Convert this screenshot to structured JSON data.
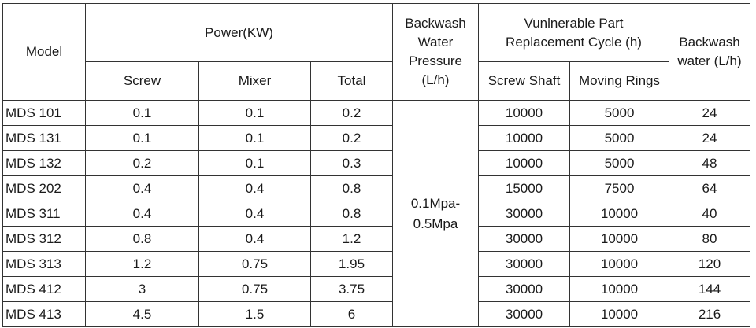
{
  "headers": {
    "model": "Model",
    "power": "Power(KW)",
    "screw": "Screw",
    "mixer": "Mixer",
    "total": "Total",
    "pressure_line1": "Backwash",
    "pressure_line2": "Water",
    "pressure_line3": "Pressure",
    "pressure_line4": "(L/h)",
    "cycle_line1": "Vunlnerable Part",
    "cycle_line2": "Replacement Cycle (h)",
    "screw_shaft": "Screw Shaft",
    "moving_rings": "Moving Rings",
    "water_line1": "Backwash",
    "water_line2": "water (L/h)"
  },
  "pressure_value_line1": "0.1Mpa-",
  "pressure_value_line2": "0.5Mpa",
  "rows": [
    {
      "model": "MDS 101",
      "screw": "0.1",
      "mixer": "0.1",
      "total": "0.2",
      "shaft": "10000",
      "rings": "5000",
      "water": "24"
    },
    {
      "model": "MDS 131",
      "screw": "0.1",
      "mixer": "0.1",
      "total": "0.2",
      "shaft": "10000",
      "rings": "5000",
      "water": "24"
    },
    {
      "model": "MDS 132",
      "screw": "0.2",
      "mixer": "0.1",
      "total": "0.3",
      "shaft": "10000",
      "rings": "5000",
      "water": "48"
    },
    {
      "model": "MDS 202",
      "screw": "0.4",
      "mixer": "0.4",
      "total": "0.8",
      "shaft": "15000",
      "rings": "7500",
      "water": "64"
    },
    {
      "model": "MDS 311",
      "screw": "0.4",
      "mixer": "0.4",
      "total": "0.8",
      "shaft": "30000",
      "rings": "10000",
      "water": "40"
    },
    {
      "model": "MDS 312",
      "screw": "0.8",
      "mixer": "0.4",
      "total": "1.2",
      "shaft": "30000",
      "rings": "10000",
      "water": "80"
    },
    {
      "model": "MDS 313",
      "screw": "1.2",
      "mixer": "0.75",
      "total": "1.95",
      "shaft": "30000",
      "rings": "10000",
      "water": "120"
    },
    {
      "model": "MDS 412",
      "screw": "3",
      "mixer": "0.75",
      "total": "3.75",
      "shaft": "30000",
      "rings": "10000",
      "water": "144"
    },
    {
      "model": "MDS 413",
      "screw": "4.5",
      "mixer": "1.5",
      "total": "6",
      "shaft": "30000",
      "rings": "10000",
      "water": "216"
    }
  ]
}
